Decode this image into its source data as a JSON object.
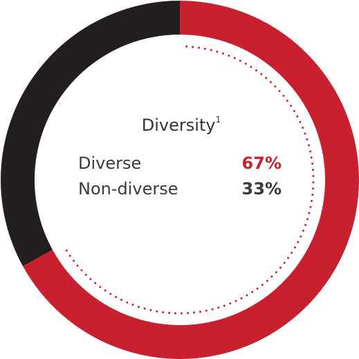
{
  "chart_data": {
    "type": "donut",
    "title": "Diversity",
    "title_note": "1",
    "categories": [
      "Diverse",
      "Non-diverse"
    ],
    "values": [
      67,
      33
    ],
    "value_labels": [
      "67%",
      "33%"
    ],
    "colors": [
      "#c8202f",
      "#231f20"
    ]
  }
}
